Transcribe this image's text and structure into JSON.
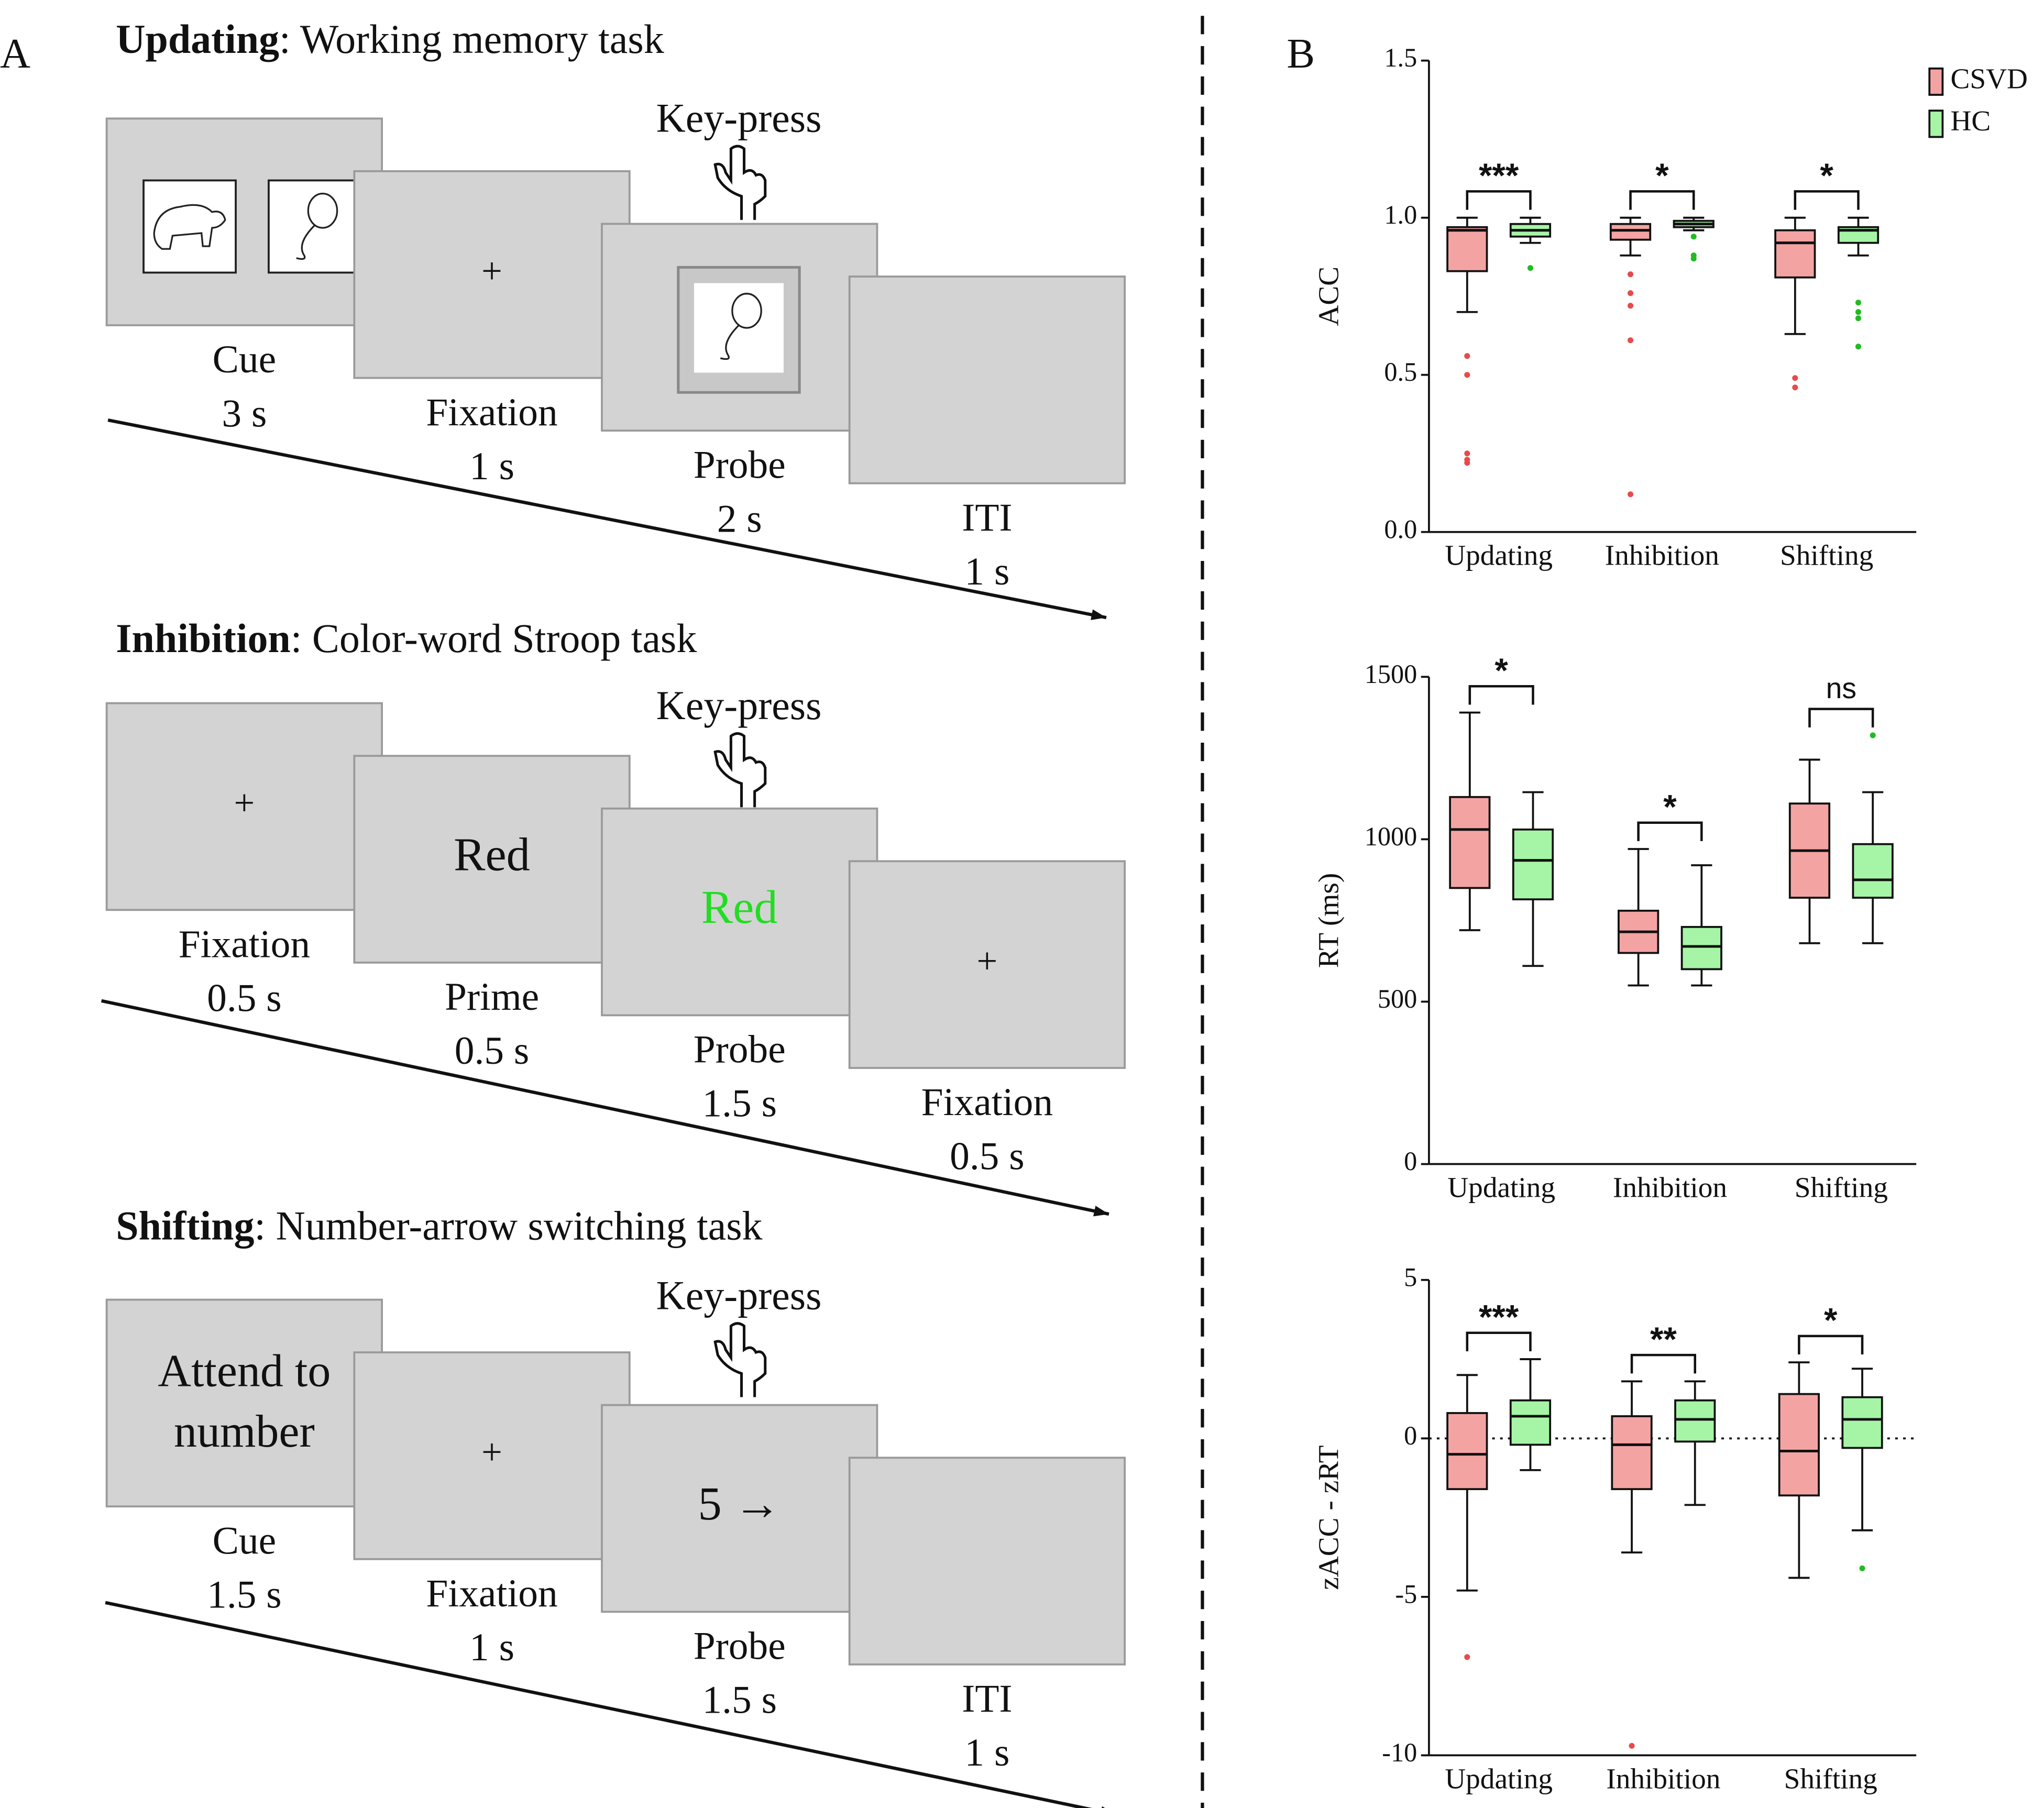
{
  "panel_a": {
    "label": "A",
    "tasks": [
      {
        "name": "Updating",
        "description": ": Working memory task",
        "key_press": "Key-press",
        "screens": [
          {
            "label": "Cue",
            "duration": "3 s"
          },
          {
            "label": "Fixation",
            "duration": "1 s",
            "content": "+"
          },
          {
            "label": "Probe",
            "duration": "2 s"
          },
          {
            "label": "ITI",
            "duration": "1 s"
          }
        ]
      },
      {
        "name": "Inhibition",
        "description": ": Color-word Stroop task",
        "key_press": "Key-press",
        "screens": [
          {
            "label": "Fixation",
            "duration": "0.5 s",
            "content": "+"
          },
          {
            "label": "Prime",
            "duration": "0.5 s",
            "content": "Red"
          },
          {
            "label": "Probe",
            "duration": "1.5 s",
            "content": "Red",
            "content_color": "#22dd22"
          },
          {
            "label": "Fixation",
            "duration": "0.5 s",
            "content": "+"
          }
        ]
      },
      {
        "name": "Shifting",
        "description": ": Number-arrow switching task",
        "key_press": "Key-press",
        "screens": [
          {
            "label": "Cue",
            "duration": "1.5 s",
            "content_lines": [
              "Attend to",
              "number"
            ]
          },
          {
            "label": "Fixation",
            "duration": "1 s",
            "content": "+"
          },
          {
            "label": "Probe",
            "duration": "1.5 s",
            "content": "5 →"
          },
          {
            "label": "ITI",
            "duration": "1 s"
          }
        ]
      }
    ]
  },
  "panel_b": {
    "label": "B"
  },
  "chart_data": [
    {
      "type": "box",
      "ylabel": "ACC",
      "ylim": [
        0,
        1.5
      ],
      "yticks": [
        {
          "value": 0,
          "label": "0.0"
        },
        0.5,
        {
          "value": 1,
          "label": "1.0"
        },
        1.5
      ],
      "categories": [
        "Updating",
        "Inhibition",
        "Shifting"
      ],
      "legend": "upper right",
      "significance": [
        "***",
        "*",
        "*"
      ],
      "series": [
        {
          "name": "CSVD",
          "color": "#f4a3a3",
          "boxes": [
            {
              "min": 0.7,
              "q1": 0.83,
              "median": 0.96,
              "q3": 0.97,
              "max": 1.0,
              "outliers": [
                0.56,
                0.5,
                0.25,
                0.23,
                0.22
              ]
            },
            {
              "min": 0.88,
              "q1": 0.93,
              "median": 0.96,
              "q3": 0.98,
              "max": 1.0,
              "outliers": [
                0.82,
                0.76,
                0.72,
                0.61,
                0.12
              ]
            },
            {
              "min": 0.63,
              "q1": 0.81,
              "median": 0.92,
              "q3": 0.96,
              "max": 1.0,
              "outliers": [
                0.49,
                0.46
              ]
            }
          ]
        },
        {
          "name": "HC",
          "color": "#a6f5a6",
          "boxes": [
            {
              "min": 0.92,
              "q1": 0.94,
              "median": 0.96,
              "q3": 0.98,
              "max": 1.0,
              "outliers": [
                0.84
              ]
            },
            {
              "min": 0.96,
              "q1": 0.97,
              "median": 0.98,
              "q3": 0.99,
              "max": 1.0,
              "outliers": [
                0.94,
                0.88,
                0.87
              ]
            },
            {
              "min": 0.88,
              "q1": 0.92,
              "median": 0.96,
              "q3": 0.97,
              "max": 1.0,
              "outliers": [
                0.73,
                0.7,
                0.68,
                0.59
              ]
            }
          ]
        }
      ]
    },
    {
      "type": "box",
      "ylabel": "RT (ms)",
      "ylim": [
        0,
        1500
      ],
      "yticks": [
        0,
        500,
        1000,
        1500
      ],
      "categories": [
        "Updating",
        "Inhibition",
        "Shifting"
      ],
      "significance": [
        "*",
        "*",
        "ns"
      ],
      "series": [
        {
          "name": "CSVD",
          "color": "#f4a3a3",
          "boxes": [
            {
              "min": 720,
              "q1": 850,
              "median": 1030,
              "q3": 1130,
              "max": 1390,
              "outliers": []
            },
            {
              "min": 550,
              "q1": 650,
              "median": 715,
              "q3": 780,
              "max": 970,
              "outliers": []
            },
            {
              "min": 680,
              "q1": 820,
              "median": 965,
              "q3": 1110,
              "max": 1245,
              "outliers": []
            }
          ]
        },
        {
          "name": "HC",
          "color": "#a6f5a6",
          "boxes": [
            {
              "min": 610,
              "q1": 815,
              "median": 935,
              "q3": 1030,
              "max": 1145,
              "outliers": []
            },
            {
              "min": 550,
              "q1": 600,
              "median": 670,
              "q3": 730,
              "max": 920,
              "outliers": []
            },
            {
              "min": 680,
              "q1": 820,
              "median": 875,
              "q3": 985,
              "max": 1145,
              "outliers": [
                1320
              ]
            }
          ]
        }
      ]
    },
    {
      "type": "box",
      "ylabel": "zACC - zRT",
      "ylim": [
        -10,
        5
      ],
      "yticks": [
        -10,
        -5,
        0,
        5
      ],
      "zero_line": true,
      "categories": [
        "Updating",
        "Inhibition",
        "Shifting"
      ],
      "significance": [
        "***",
        "**",
        "*"
      ],
      "series": [
        {
          "name": "CSVD",
          "color": "#f4a3a3",
          "boxes": [
            {
              "min": -4.8,
              "q1": -1.6,
              "median": -0.5,
              "q3": 0.8,
              "max": 2.0,
              "outliers": [
                -6.9
              ]
            },
            {
              "min": -3.6,
              "q1": -1.6,
              "median": -0.2,
              "q3": 0.7,
              "max": 1.8,
              "outliers": [
                -9.7
              ]
            },
            {
              "min": -4.4,
              "q1": -1.8,
              "median": -0.4,
              "q3": 1.4,
              "max": 2.4,
              "outliers": []
            }
          ]
        },
        {
          "name": "HC",
          "color": "#a6f5a6",
          "boxes": [
            {
              "min": -1.0,
              "q1": -0.2,
              "median": 0.7,
              "q3": 1.2,
              "max": 2.5,
              "outliers": []
            },
            {
              "min": -2.1,
              "q1": -0.1,
              "median": 0.6,
              "q3": 1.2,
              "max": 1.8,
              "outliers": []
            },
            {
              "min": -2.9,
              "q1": -0.3,
              "median": 0.6,
              "q3": 1.3,
              "max": 2.2,
              "outliers": [
                -4.1
              ]
            }
          ]
        }
      ]
    }
  ]
}
